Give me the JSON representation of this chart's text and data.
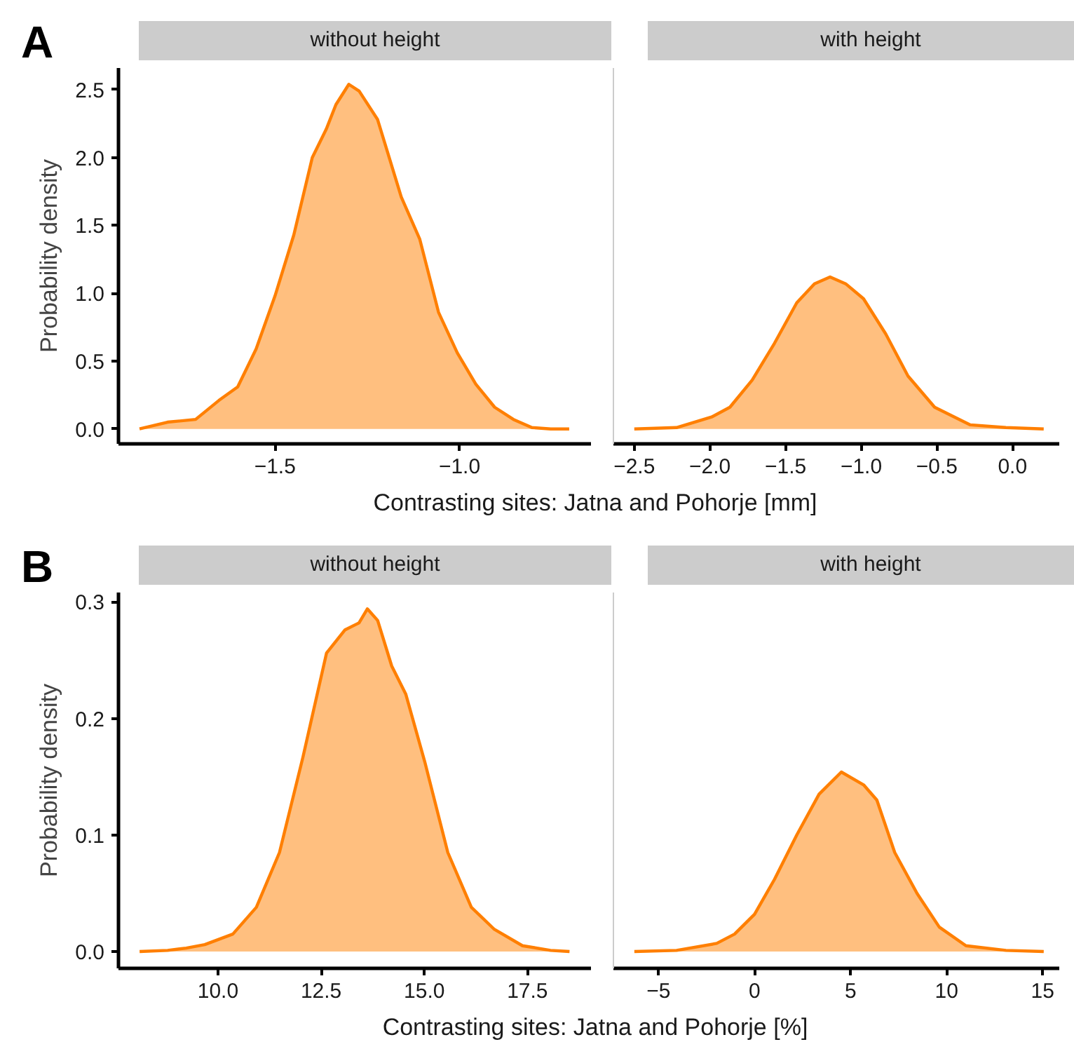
{
  "chart_data": [
    {
      "type": "area",
      "title": "without height",
      "ylabel": "Probability density",
      "xlabel": "Contrasting sites: Jatna and Pohorje [mm]",
      "annotations": [
        "A"
      ],
      "grid": false,
      "tick_labels": "xy",
      "xlim": [
        -1.924,
        -0.644
      ],
      "ylim": [
        -0.11,
        2.66
      ],
      "xticks": [
        {
          "value": -1.5,
          "label": "−1.5"
        },
        {
          "value": -1.0,
          "label": "−1.0"
        }
      ],
      "yticks": [
        {
          "value": 0,
          "label": "0.0"
        },
        0.5,
        {
          "value": 1,
          "label": "1.0"
        },
        1.5,
        {
          "value": 2,
          "label": "2.0"
        },
        2.5
      ],
      "series": [
        {
          "color": "#ff7f00",
          "x": [
            -1.867,
            -1.791,
            -1.715,
            -1.652,
            -1.601,
            -1.551,
            -1.5,
            -1.449,
            -1.399,
            -1.361,
            -1.335,
            -1.3,
            -1.272,
            -1.222,
            -1.158,
            -1.108,
            -1.057,
            -1.006,
            -0.956,
            -0.905,
            -0.854,
            -0.804,
            -0.753,
            -0.703
          ],
          "values": [
            0,
            0.05,
            0.07,
            0.21,
            0.31,
            0.59,
            0.98,
            1.43,
            2.0,
            2.21,
            2.39,
            2.54,
            2.49,
            2.28,
            1.71,
            1.4,
            0.86,
            0.56,
            0.33,
            0.16,
            0.07,
            0.01,
            0,
            0
          ]
        }
      ]
    },
    {
      "type": "area",
      "title": "with height",
      "grid": false,
      "tick_labels": "x",
      "xlim": [
        -2.638,
        0.309
      ],
      "ylim": [
        -0.11,
        2.66
      ],
      "xticks": [
        {
          "value": -2.5,
          "label": "−2.5"
        },
        {
          "value": -2.0,
          "label": "−2.0"
        },
        {
          "value": -1.5,
          "label": "−1.5"
        },
        {
          "value": -1.0,
          "label": "−1.0"
        },
        {
          "value": -0.5,
          "label": "−0.5"
        },
        {
          "value": 0,
          "label": "0.0"
        }
      ],
      "series": [
        {
          "color": "#ff7f00",
          "x": [
            -2.5,
            -2.221,
            -1.985,
            -1.868,
            -1.721,
            -1.574,
            -1.426,
            -1.309,
            -1.206,
            -1.103,
            -0.985,
            -0.838,
            -0.691,
            -0.515,
            -0.279,
            -0.044,
            0.206
          ],
          "values": [
            0,
            0.01,
            0.09,
            0.16,
            0.36,
            0.63,
            0.93,
            1.07,
            1.12,
            1.07,
            0.96,
            0.7,
            0.39,
            0.16,
            0.03,
            0.01,
            0
          ]
        }
      ]
    },
    {
      "type": "area",
      "title": "without height",
      "ylabel": "Probability density",
      "xlabel": "Contrasting sites: Jatna and Pohorje [%]",
      "annotations": [
        "B"
      ],
      "grid": false,
      "tick_labels": "xy",
      "xlim": [
        7.588,
        19.04
      ],
      "ylim": [
        -0.0144,
        0.308
      ],
      "xticks": [
        {
          "value": 10,
          "label": "10.0"
        },
        12.5,
        {
          "value": 15,
          "label": "15.0"
        },
        17.5
      ],
      "yticks": [
        {
          "value": 0,
          "label": "0.0"
        },
        0.1,
        0.2,
        0.3
      ],
      "series": [
        {
          "color": "#ff7f00",
          "x": [
            8.1,
            8.78,
            9.23,
            9.68,
            10.36,
            10.93,
            11.49,
            12.06,
            12.63,
            13.08,
            13.42,
            13.62,
            13.87,
            14.21,
            14.55,
            15.01,
            15.57,
            16.14,
            16.7,
            17.38,
            18.06,
            18.52
          ],
          "values": [
            0,
            0.001,
            0.003,
            0.006,
            0.015,
            0.038,
            0.085,
            0.167,
            0.256,
            0.276,
            0.282,
            0.294,
            0.284,
            0.245,
            0.221,
            0.163,
            0.085,
            0.038,
            0.019,
            0.005,
            0.001,
            0
          ]
        }
      ]
    },
    {
      "type": "area",
      "title": "with height",
      "grid": false,
      "tick_labels": "x",
      "xlim": [
        -7.35,
        15.87
      ],
      "ylim": [
        -0.0144,
        0.308
      ],
      "xticks": [
        {
          "value": -5,
          "label": "−5"
        },
        0,
        5,
        10,
        15
      ],
      "series": [
        {
          "color": "#ff7f00",
          "x": [
            -6.26,
            -4.06,
            -1.97,
            -1.04,
            0,
            1.04,
            2.2,
            3.36,
            4.52,
            5.68,
            6.37,
            7.3,
            8.46,
            9.62,
            11.01,
            13.09,
            15.06
          ],
          "values": [
            0,
            0.001,
            0.007,
            0.015,
            0.032,
            0.062,
            0.1,
            0.135,
            0.154,
            0.143,
            0.13,
            0.085,
            0.05,
            0.021,
            0.005,
            0.001,
            0
          ]
        }
      ]
    }
  ]
}
